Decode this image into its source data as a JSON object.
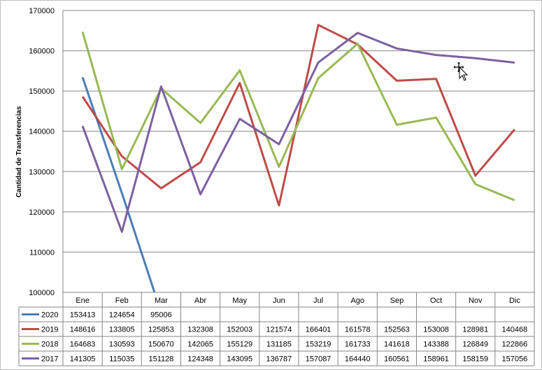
{
  "chart_data": {
    "type": "line",
    "ylabel": "Cantidad de Transferencias",
    "ylim": [
      100000,
      170000
    ],
    "yticks": [
      "100000",
      "110000",
      "120000",
      "130000",
      "140000",
      "150000",
      "160000",
      "170000"
    ],
    "categories": [
      "Ene",
      "Feb",
      "Mar",
      "Abr",
      "May",
      "Jun",
      "Jul",
      "Ago",
      "Sep",
      "Oct",
      "Nov",
      "Dic"
    ],
    "grid": true,
    "legend": "data-table",
    "series": [
      {
        "name": "2020",
        "color": "#4a7ebb",
        "values": [
          153413,
          124654,
          95006,
          null,
          null,
          null,
          null,
          null,
          null,
          null,
          null,
          null
        ]
      },
      {
        "name": "2019",
        "color": "#be4b48",
        "values": [
          148616,
          133805,
          125853,
          132308,
          152003,
          121574,
          166401,
          161578,
          152563,
          153008,
          128981,
          140468
        ]
      },
      {
        "name": "2018",
        "color": "#98b954",
        "values": [
          164683,
          130593,
          150670,
          142065,
          155129,
          131185,
          153219,
          161733,
          141618,
          143388,
          126849,
          122866
        ]
      },
      {
        "name": "2017",
        "color": "#7d60a0",
        "values": [
          141305,
          115035,
          151128,
          124348,
          143095,
          136787,
          157087,
          164440,
          160561,
          158961,
          158159,
          157056
        ]
      }
    ]
  },
  "cursor": {
    "icon": "move-cursor-icon"
  }
}
